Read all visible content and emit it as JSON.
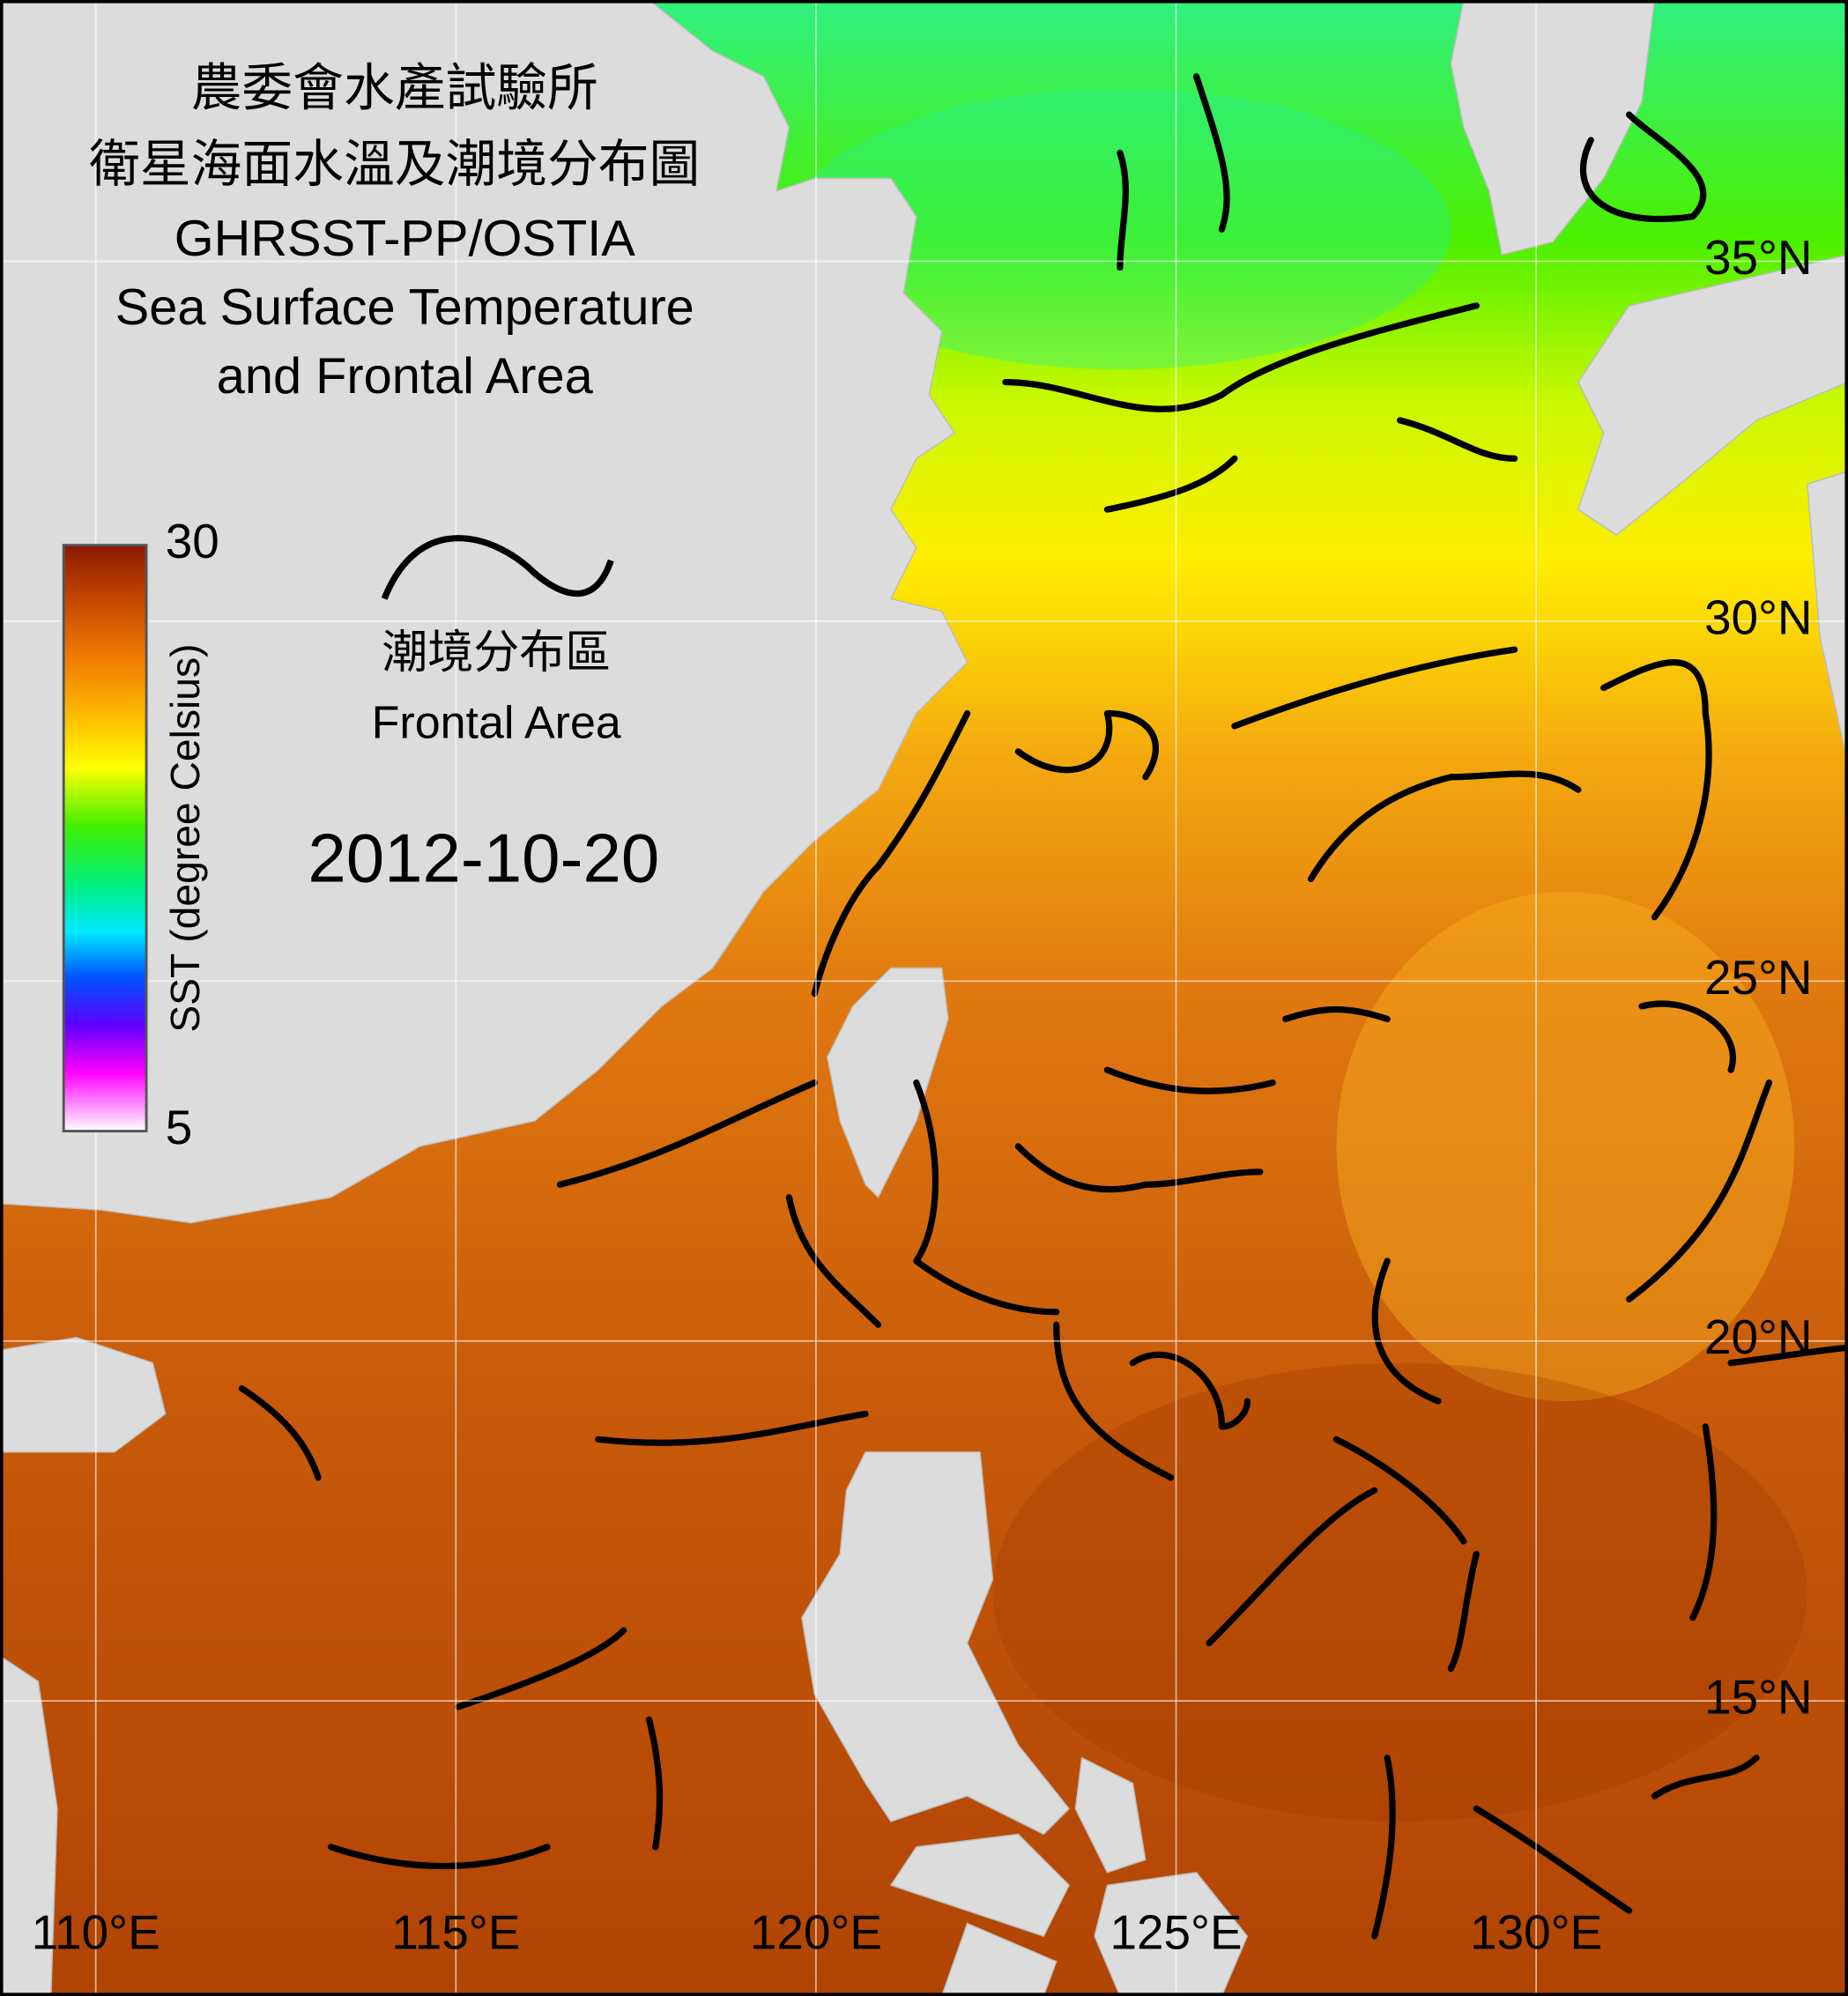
{
  "title": [
    "農委會水產試驗所",
    "衛星海面水溫及潮境分布圖",
    "GHRSST-PP/OSTIA",
    "Sea Surface Temperature",
    "and Frontal Area"
  ],
  "colorbar": {
    "label": "SST (degree Celsius)",
    "range": [
      5,
      30
    ],
    "ticks": [
      5,
      30
    ]
  },
  "legend": {
    "labels": [
      "潮境分布區",
      "Frontal Area"
    ]
  },
  "date": "2012-10-20",
  "map": {
    "xlim": [
      108.67,
      134.33
    ],
    "ylim": [
      10.9,
      38.63
    ],
    "lon_ticks": [
      {
        "value": 110,
        "label": "110°E"
      },
      {
        "value": 115,
        "label": "115°E"
      },
      {
        "value": 120,
        "label": "120°E"
      },
      {
        "value": 125,
        "label": "125°E"
      },
      {
        "value": 130,
        "label": "130°E"
      }
    ],
    "lat_ticks": [
      {
        "value": 35,
        "label": "35°N"
      },
      {
        "value": 30,
        "label": "30°N"
      },
      {
        "value": 25,
        "label": "25°N"
      },
      {
        "value": 20,
        "label": "20°N"
      },
      {
        "value": 15,
        "label": "15°N"
      }
    ]
  }
}
